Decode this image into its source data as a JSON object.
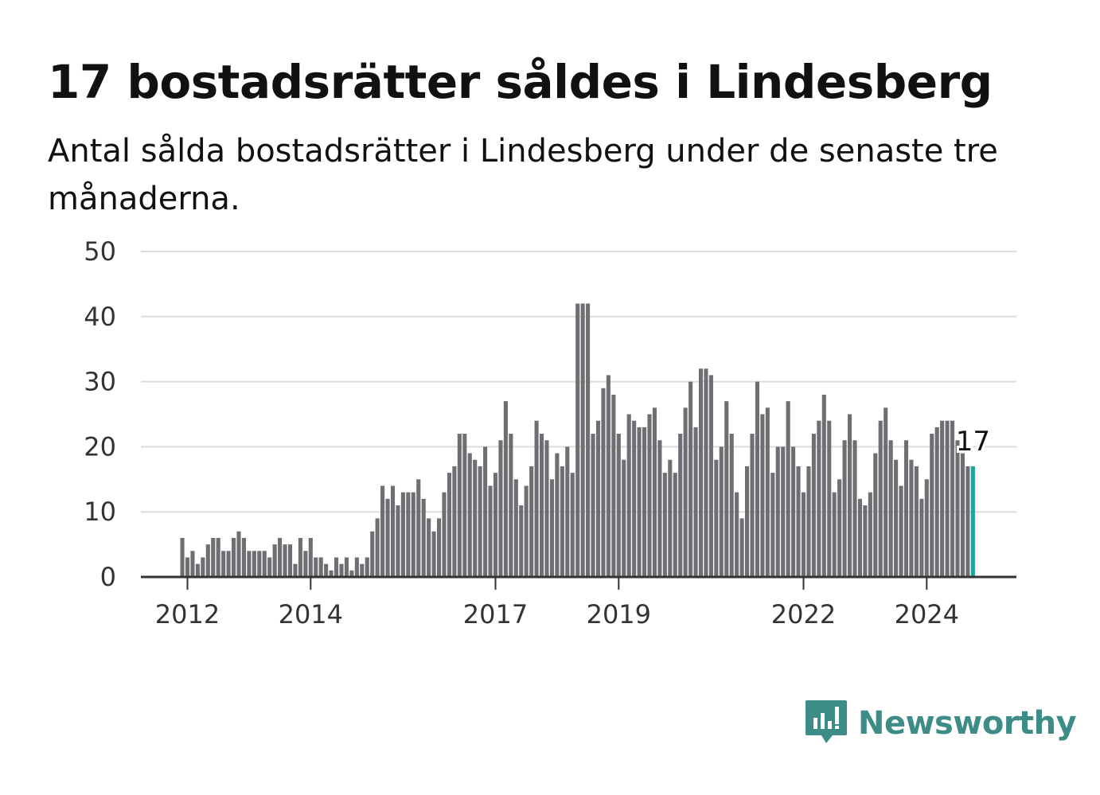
{
  "chart_data": {
    "type": "bar",
    "title": "17 bostadsrätter såldes i Lindesberg",
    "subtitle": "Antal sålda bostadsrätter i Lindesberg under de senaste tre månaderna.",
    "xlabel": "",
    "ylabel": "",
    "ylim": [
      0,
      50
    ],
    "yticks": [
      "0",
      "10",
      "20",
      "30",
      "40",
      "50"
    ],
    "xticks": [
      "2012",
      "2014",
      "2017",
      "2019",
      "2022",
      "2024"
    ],
    "grid": true,
    "legend": "none",
    "bar_color": "#6e6e73",
    "highlight_color": "#21a59a",
    "highlight_label": "17",
    "values": [
      6,
      3,
      4,
      2,
      3,
      5,
      6,
      6,
      4,
      4,
      6,
      7,
      6,
      4,
      4,
      4,
      4,
      3,
      5,
      6,
      5,
      5,
      2,
      6,
      4,
      6,
      3,
      3,
      2,
      1,
      3,
      2,
      3,
      1,
      3,
      2,
      3,
      7,
      9,
      14,
      12,
      14,
      11,
      13,
      13,
      13,
      15,
      12,
      9,
      7,
      9,
      13,
      16,
      17,
      22,
      22,
      19,
      18,
      17,
      20,
      14,
      16,
      21,
      27,
      22,
      15,
      11,
      14,
      17,
      24,
      22,
      21,
      15,
      19,
      17,
      20,
      16,
      42,
      42,
      42,
      22,
      24,
      29,
      31,
      28,
      22,
      18,
      25,
      24,
      23,
      23,
      25,
      26,
      21,
      16,
      18,
      16,
      22,
      26,
      30,
      23,
      32,
      32,
      31,
      18,
      20,
      27,
      22,
      13,
      9,
      17,
      22,
      30,
      25,
      26,
      16,
      20,
      20,
      27,
      20,
      17,
      13,
      17,
      22,
      24,
      28,
      24,
      13,
      15,
      21,
      25,
      21,
      12,
      11,
      13,
      19,
      24,
      26,
      21,
      18,
      14,
      21,
      18,
      17,
      12,
      15,
      22,
      23,
      24,
      24,
      24,
      21,
      19,
      17,
      17
    ]
  },
  "brand": {
    "name": "Newsworthy",
    "color": "#3d8c87",
    "icon": "newsworthy-logo-icon"
  }
}
